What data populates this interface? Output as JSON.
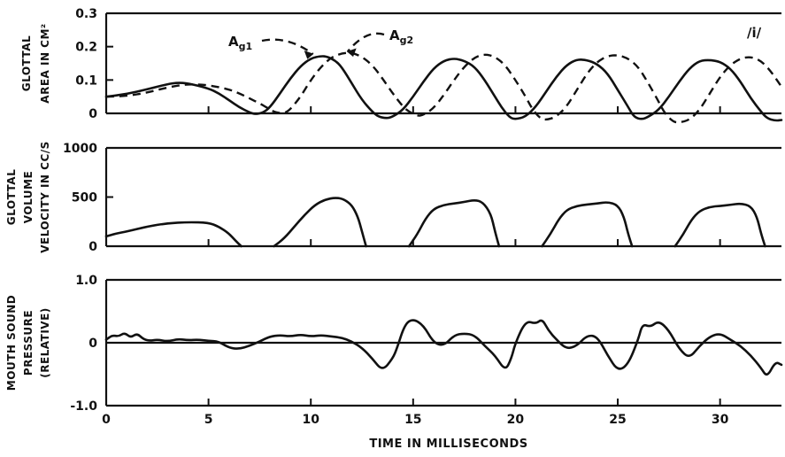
{
  "chart_data": [
    {
      "type": "line",
      "panel": "glottal-area",
      "ylabel_lines": [
        "GLOTTAL",
        "AREA IN CM²"
      ],
      "ylim": [
        0,
        0.3
      ],
      "xlim": [
        0,
        33
      ],
      "yticks": [
        0,
        0.1,
        0.2,
        0.3
      ],
      "ytick_labels": [
        "0",
        "0.1",
        "0.2",
        "0.3"
      ],
      "xticks": [
        5,
        10,
        15,
        20,
        25,
        30
      ],
      "annotation": "/i/",
      "series": [
        {
          "name": "Ag1",
          "style": "solid",
          "x": [
            0,
            1,
            2,
            3,
            3.5,
            4,
            5,
            5.5,
            6,
            6.5,
            7,
            7.3,
            7.7,
            8,
            8.5,
            9,
            9.5,
            10,
            10.5,
            10.8,
            11.2,
            11.5,
            12,
            12.5,
            13,
            13.3,
            13.7,
            14,
            14.5,
            15,
            15.5,
            16,
            16.5,
            17,
            17.5,
            18,
            18.5,
            19,
            19.3,
            19.7,
            20,
            20.5,
            21,
            21.5,
            22,
            22.5,
            23,
            23.5,
            24,
            24.5,
            25,
            25.5,
            25.8,
            26.2,
            26.5,
            27,
            27.5,
            28,
            28.5,
            29,
            29.5,
            30,
            30.5,
            31,
            31.5,
            32,
            32.3,
            32.7,
            33
          ],
          "y": [
            0.05,
            0.058,
            0.072,
            0.088,
            0.092,
            0.09,
            0.075,
            0.06,
            0.04,
            0.018,
            0.003,
            -0.003,
            0.003,
            0.018,
            0.06,
            0.105,
            0.142,
            0.165,
            0.172,
            0.17,
            0.158,
            0.14,
            0.09,
            0.04,
            0.005,
            -0.01,
            -0.015,
            -0.01,
            0.01,
            0.05,
            0.095,
            0.135,
            0.158,
            0.165,
            0.158,
            0.14,
            0.1,
            0.05,
            0.02,
            -0.012,
            -0.018,
            -0.01,
            0.02,
            0.065,
            0.11,
            0.145,
            0.162,
            0.16,
            0.148,
            0.12,
            0.07,
            0.02,
            -0.012,
            -0.018,
            -0.01,
            0.01,
            0.05,
            0.095,
            0.135,
            0.158,
            0.16,
            0.155,
            0.135,
            0.095,
            0.045,
            0.005,
            -0.015,
            -0.022,
            -0.02
          ]
        },
        {
          "name": "Ag2",
          "style": "dashed",
          "x": [
            0,
            1,
            2,
            3,
            4,
            5,
            6,
            6.5,
            7,
            7.5,
            8,
            8.3,
            8.7,
            9,
            9.5,
            10,
            10.5,
            11,
            11.5,
            12,
            12.5,
            13,
            13.5,
            14,
            14.5,
            14.8,
            15.2,
            15.5,
            16,
            16.5,
            17,
            17.5,
            18,
            18.5,
            19,
            19.5,
            20,
            20.5,
            20.8,
            21.2,
            21.5,
            22,
            22.5,
            23,
            23.5,
            24,
            24.5,
            25,
            25.5,
            26,
            26.5,
            27,
            27.3,
            27.7,
            28,
            28.5,
            29,
            29.5,
            30,
            30.5,
            31,
            31.5,
            32,
            32.5,
            33
          ],
          "y": [
            0.05,
            0.052,
            0.062,
            0.078,
            0.088,
            0.085,
            0.072,
            0.06,
            0.045,
            0.03,
            0.012,
            0.002,
            0.0,
            0.012,
            0.05,
            0.1,
            0.14,
            0.168,
            0.18,
            0.182,
            0.17,
            0.145,
            0.105,
            0.06,
            0.02,
            0.005,
            -0.008,
            -0.005,
            0.015,
            0.055,
            0.1,
            0.14,
            0.168,
            0.178,
            0.17,
            0.145,
            0.1,
            0.05,
            0.015,
            -0.015,
            -0.02,
            -0.01,
            0.02,
            0.07,
            0.12,
            0.155,
            0.172,
            0.175,
            0.165,
            0.14,
            0.09,
            0.035,
            0.0,
            -0.025,
            -0.028,
            -0.02,
            0.01,
            0.06,
            0.11,
            0.145,
            0.165,
            0.17,
            0.158,
            0.125,
            0.08
          ]
        }
      ],
      "labels": [
        {
          "text": "Ag1",
          "main": "A",
          "sub": "g1",
          "arrow_to": [
            10.1,
            0.178
          ]
        },
        {
          "text": "Ag2",
          "main": "A",
          "sub": "g2",
          "arrow_to": [
            11.8,
            0.185
          ]
        }
      ]
    },
    {
      "type": "line",
      "panel": "glottal-volume-velocity",
      "ylabel_lines": [
        "GLOTTAL",
        "VOLUME",
        "VELOCITY IN CC/S"
      ],
      "ylim": [
        0,
        1000
      ],
      "xlim": [
        0,
        33
      ],
      "yticks": [
        0,
        500,
        1000
      ],
      "ytick_labels": [
        "0",
        "500",
        "1000"
      ],
      "xticks": [
        5,
        10,
        15,
        20,
        25,
        30
      ],
      "series": [
        {
          "name": "Ug",
          "style": "solid",
          "segments": [
            {
              "x": [
                0,
                0.5,
                1,
                2,
                3,
                4,
                5,
                5.5,
                6,
                6.3,
                6.6
              ],
              "y": [
                100,
                130,
                150,
                200,
                235,
                245,
                240,
                200,
                130,
                60,
                0
              ]
            },
            {
              "x": [
                8.2,
                8.7,
                9.2,
                9.7,
                10.2,
                10.7,
                11.2,
                11.6,
                12,
                12.3,
                12.5,
                12.7
              ],
              "y": [
                0,
                80,
                200,
                320,
                420,
                475,
                495,
                480,
                420,
                300,
                150,
                0
              ]
            },
            {
              "x": [
                14.8,
                15.2,
                15.6,
                16,
                16.5,
                17,
                17.5,
                18,
                18.4,
                18.8,
                19,
                19.2
              ],
              "y": [
                0,
                120,
                280,
                380,
                420,
                435,
                450,
                470,
                450,
                330,
                150,
                0
              ]
            },
            {
              "x": [
                21.3,
                21.7,
                22.1,
                22.5,
                23,
                23.5,
                24,
                24.5,
                25,
                25.3,
                25.5,
                25.7
              ],
              "y": [
                0,
                120,
                270,
                370,
                410,
                425,
                435,
                450,
                420,
                300,
                130,
                0
              ]
            },
            {
              "x": [
                27.8,
                28.2,
                28.6,
                29,
                29.5,
                30,
                30.5,
                31,
                31.5,
                31.8,
                32,
                32.2
              ],
              "y": [
                0,
                120,
                270,
                360,
                400,
                410,
                420,
                435,
                410,
                300,
                130,
                0
              ]
            }
          ]
        }
      ]
    },
    {
      "type": "line",
      "panel": "mouth-sound-pressure",
      "ylabel_lines": [
        "MOUTH SOUND",
        "PRESSURE",
        "(RELATIVE)"
      ],
      "ylim": [
        -1.0,
        1.0
      ],
      "xlim": [
        0,
        33
      ],
      "yticks": [
        -1.0,
        0,
        1.0
      ],
      "ytick_labels": [
        "-1.0",
        "0",
        "1.0"
      ],
      "xticks": [
        0,
        5,
        10,
        15,
        20,
        25,
        30
      ],
      "xtick_labels": [
        "0",
        "5",
        "10",
        "15",
        "20",
        "25",
        "30"
      ],
      "xlabel": "TIME IN MILLISECONDS",
      "series": [
        {
          "name": "pressure",
          "style": "solid",
          "x": [
            0,
            0.3,
            0.6,
            0.9,
            1.2,
            1.5,
            1.8,
            2.1,
            2.5,
            3,
            3.5,
            4,
            4.5,
            5,
            5.5,
            6,
            6.5,
            7,
            7.5,
            8,
            8.5,
            9,
            9.5,
            10,
            10.5,
            11,
            11.5,
            12,
            12.5,
            13,
            13.5,
            14,
            14.2,
            14.6,
            15,
            15.5,
            16,
            16.5,
            17,
            17.5,
            18,
            18.5,
            19,
            19.5,
            19.8,
            20,
            20.5,
            21,
            21.3,
            21.6,
            22,
            22.5,
            23,
            23.5,
            24,
            24.5,
            25,
            25.5,
            26,
            26.2,
            26.6,
            27,
            27.5,
            28,
            28.5,
            29,
            29.5,
            30,
            30.5,
            31,
            31.5,
            32,
            32.3,
            32.7,
            33
          ],
          "y": [
            0.05,
            0.12,
            0.1,
            0.16,
            0.08,
            0.15,
            0.06,
            0.03,
            0.05,
            0.02,
            0.06,
            0.04,
            0.05,
            0.03,
            0.02,
            -0.08,
            -0.1,
            -0.05,
            0.02,
            0.1,
            0.12,
            0.1,
            0.13,
            0.1,
            0.12,
            0.1,
            0.08,
            0.02,
            -0.08,
            -0.25,
            -0.45,
            -0.25,
            -0.1,
            0.3,
            0.38,
            0.28,
            0.0,
            -0.05,
            0.12,
            0.15,
            0.12,
            -0.05,
            -0.2,
            -0.45,
            -0.25,
            0.0,
            0.35,
            0.3,
            0.38,
            0.2,
            0.05,
            -0.1,
            -0.05,
            0.12,
            0.1,
            -0.2,
            -0.45,
            -0.35,
            0.05,
            0.3,
            0.25,
            0.35,
            0.2,
            -0.1,
            -0.25,
            -0.05,
            0.1,
            0.15,
            0.05,
            -0.05,
            -0.2,
            -0.4,
            -0.55,
            -0.3,
            -0.35
          ]
        }
      ]
    }
  ]
}
